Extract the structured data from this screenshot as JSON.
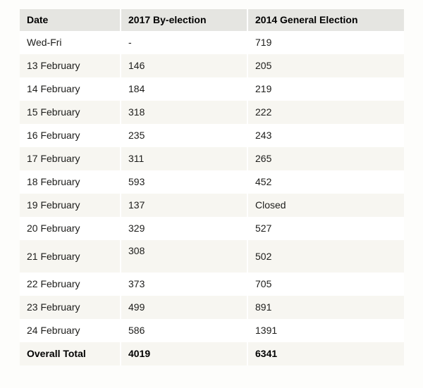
{
  "chart_data": {
    "type": "table",
    "columns": [
      "Date",
      "2017 By-election",
      "2014 General Election"
    ],
    "rows": [
      {
        "cells": [
          "Wed-Fri",
          "-",
          "719"
        ]
      },
      {
        "cells": [
          "13 February",
          "146",
          "205"
        ]
      },
      {
        "cells": [
          "14 February",
          "184",
          "219"
        ]
      },
      {
        "cells": [
          "15 February",
          "318",
          "222"
        ]
      },
      {
        "cells": [
          "16 February",
          "235",
          "243"
        ]
      },
      {
        "cells": [
          "17 February",
          "311",
          "265"
        ]
      },
      {
        "cells": [
          "18 February",
          "593",
          "452"
        ]
      },
      {
        "cells": [
          "19 February",
          "137",
          "Closed"
        ]
      },
      {
        "cells": [
          "20 February",
          "329",
          "527"
        ]
      },
      {
        "cells": [
          "21 February",
          "308",
          "502"
        ]
      },
      {
        "cells": [
          "22 February",
          "373",
          "705"
        ]
      },
      {
        "cells": [
          "23 February",
          "499",
          "891"
        ]
      },
      {
        "cells": [
          "24 February",
          "586",
          "1391"
        ]
      },
      {
        "cells": [
          "Overall Total",
          "4019",
          "6341"
        ]
      }
    ]
  },
  "colors": {
    "header_bg": "#e5e5e1",
    "stripe_bg": "#f7f6f1",
    "row_bg": "#ffffff",
    "separator": "#ffffff",
    "text": "#1d1d1b",
    "page_bg": "#fdfdfb"
  }
}
